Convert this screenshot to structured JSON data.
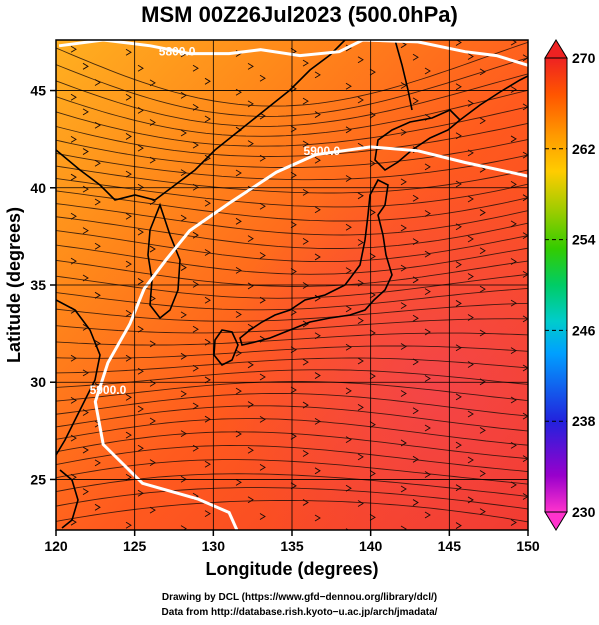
{
  "title": "MSM 00Z26Jul2023 (500.0hPa)",
  "x_axis_title": "Longitude (degrees)",
  "y_axis_title": "Latitude  (degrees)",
  "x_ticks": [
    120,
    125,
    130,
    135,
    140,
    145,
    150
  ],
  "y_ticks": [
    25,
    30,
    35,
    40,
    45
  ],
  "x_range": [
    120,
    150
  ],
  "y_range": [
    22.4,
    47.6
  ],
  "colorbar": {
    "ticks": [
      270,
      262,
      254,
      246,
      238,
      230
    ],
    "range": [
      230,
      270
    ],
    "colors": [
      "#ff33cc",
      "#9900cc",
      "#2222dd",
      "#00a0ff",
      "#00cccc",
      "#00cc66",
      "#33cc00",
      "#99cc00",
      "#ffcc00",
      "#ff9900",
      "#ff5500",
      "#ee2222"
    ]
  },
  "contours": [
    {
      "label": "5800.0",
      "points": [
        [
          120.2,
          47.3
        ],
        [
          123,
          47.6
        ],
        [
          126,
          47.3
        ],
        [
          128.5,
          46.9
        ],
        [
          131,
          46.9
        ],
        [
          133,
          47.1
        ],
        [
          135.5,
          46.8
        ],
        [
          138,
          47.0
        ],
        [
          139.5,
          47.6
        ],
        [
          143,
          47.5
        ],
        [
          146,
          47.0
        ],
        [
          148,
          46.8
        ],
        [
          150,
          46.3
        ]
      ]
    },
    {
      "label": "5900.0",
      "points": [
        [
          131.5,
          22.4
        ],
        [
          131,
          23.3
        ],
        [
          129,
          24.0
        ],
        [
          125.5,
          24.8
        ],
        [
          123,
          26.8
        ],
        [
          122.5,
          29.0
        ],
        [
          123.3,
          31.0
        ],
        [
          124.7,
          33.0
        ],
        [
          125.6,
          34.8
        ],
        [
          127.0,
          36.3
        ],
        [
          128.5,
          37.8
        ],
        [
          131,
          39.2
        ],
        [
          134,
          40.8
        ],
        [
          136.5,
          41.7
        ],
        [
          140,
          42.1
        ],
        [
          143,
          41.9
        ],
        [
          146,
          41.3
        ],
        [
          150,
          40.6
        ]
      ]
    }
  ],
  "contour_label_positions": [
    {
      "label": "5800.0",
      "lon": 127.7,
      "lat": 47.0
    },
    {
      "label": "5900.0",
      "lon": 136.9,
      "lat": 41.9
    },
    {
      "label": "5900.0",
      "lon": 123.3,
      "lat": 29.6
    }
  ],
  "credit": {
    "line1": "Drawing by DCL (https://www.gfd−dennou.org/library/dcl/)",
    "line2": "Data from http://database.rish.kyoto−u.ac.jp/arch/jmadata/"
  }
}
